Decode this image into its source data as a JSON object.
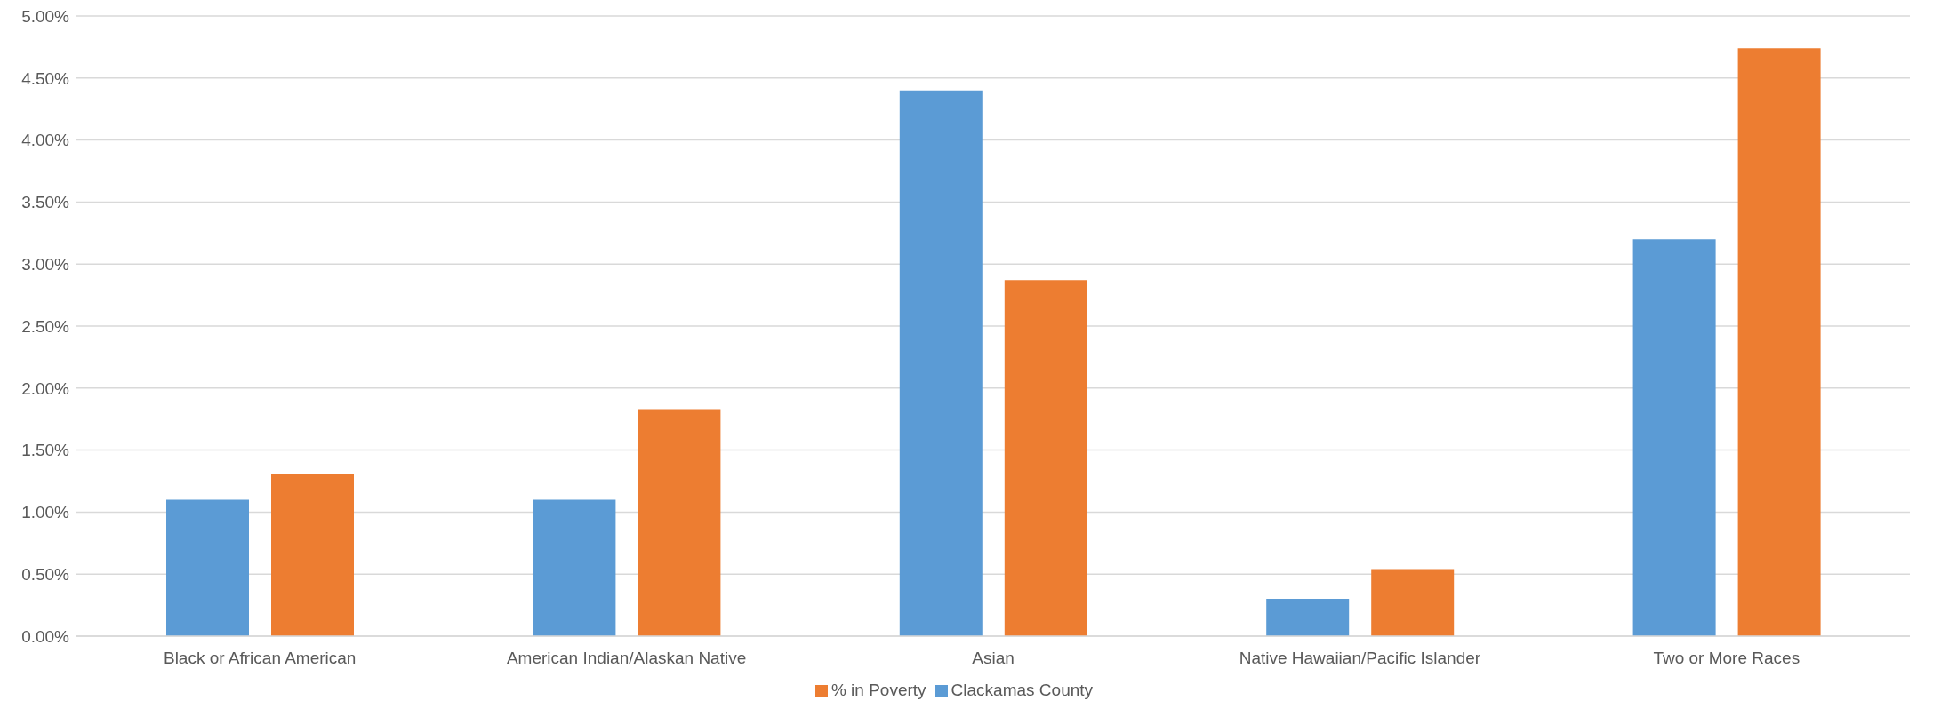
{
  "chart_data": {
    "type": "bar",
    "categories": [
      "Black or African American",
      "American Indian/Alaskan Native",
      "Asian",
      "Native Hawaiian/Pacific Islander",
      "Two or More Races"
    ],
    "series": [
      {
        "name": "Clackamas County",
        "color": "#5b9bd5",
        "values": [
          1.1,
          1.1,
          4.4,
          0.3,
          3.2
        ]
      },
      {
        "name": "% in Poverty",
        "color": "#ed7d31",
        "values": [
          1.31,
          1.83,
          2.87,
          0.54,
          4.74
        ]
      }
    ],
    "ylim": [
      0,
      5
    ],
    "yticks": [
      {
        "value": 0,
        "label": "0.00%"
      },
      {
        "value": 0.5,
        "label": "0.50%"
      },
      {
        "value": 1,
        "label": "1.00%"
      },
      {
        "value": 1.5,
        "label": "1.50%"
      },
      {
        "value": 2,
        "label": "2.00%"
      },
      {
        "value": 2.5,
        "label": "2.50%"
      },
      {
        "value": 3,
        "label": "3.00%"
      },
      {
        "value": 3.5,
        "label": "3.50%"
      },
      {
        "value": 4,
        "label": "4.00%"
      },
      {
        "value": 4.5,
        "label": "4.50%"
      },
      {
        "value": 5,
        "label": "5.00%"
      }
    ],
    "grid": "y",
    "legend": "bottom"
  }
}
